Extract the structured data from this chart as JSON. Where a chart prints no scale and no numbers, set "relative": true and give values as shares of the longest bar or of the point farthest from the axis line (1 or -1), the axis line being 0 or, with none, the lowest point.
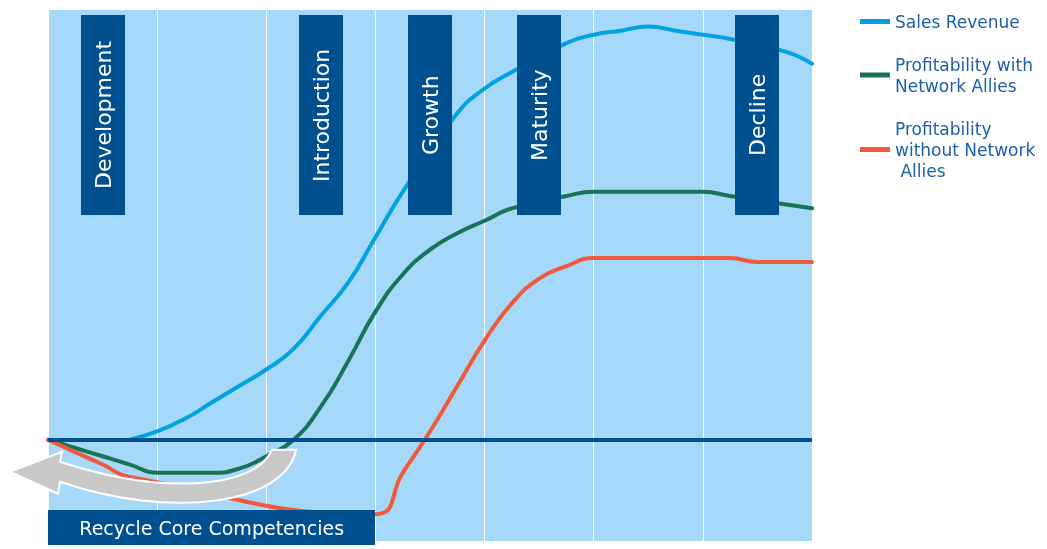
{
  "chart_data": {
    "type": "line",
    "relative": true,
    "categories": [
      null,
      null,
      null,
      null,
      null,
      null,
      null,
      null,
      null,
      null,
      null,
      null,
      null,
      null,
      null,
      null,
      null,
      null,
      null,
      null,
      null,
      null,
      null,
      null,
      null,
      null,
      null,
      null,
      null
    ],
    "series": [
      {
        "name": "Sales Revenue",
        "color": "#00a3e0",
        "values": [
          null,
          null,
          null,
          0,
          0.02,
          0.05,
          0.09,
          0.13,
          0.17,
          0.22,
          0.3,
          0.38,
          0.49,
          0.6,
          null,
          0.79,
          0.85,
          0.89,
          null,
          0.96,
          0.98,
          0.99,
          1,
          0.99,
          0.98,
          0.97,
          null,
          0.94,
          0.91
        ]
      },
      {
        "name": "Profitability with Network Allies",
        "color": "#1a7356",
        "values": [
          0,
          -0.02,
          -0.04,
          -0.06,
          -0.08,
          -0.08,
          -0.08,
          -0.07,
          -0.04,
          0,
          0.08,
          0.19,
          0.31,
          0.4,
          0.46,
          0.5,
          0.53,
          0.56,
          null,
          0.59,
          0.6,
          0.6,
          0.6,
          0.6,
          0.6,
          0.59,
          null,
          0.57,
          0.56
        ]
      },
      {
        "name": "Profitability without Network Allies",
        "color": "#f05a3c",
        "values": [
          0,
          -0.03,
          -0.06,
          -0.09,
          null,
          null,
          null,
          null,
          null,
          null,
          null,
          null,
          -0.18,
          -0.08,
          0.02,
          0.13,
          0.24,
          0.33,
          0.39,
          0.42,
          0.44,
          0.44,
          0.44,
          0.44,
          0.44,
          0.44,
          0.43,
          0.43,
          0.43
        ]
      }
    ],
    "ref_lines": [
      {
        "axis": "y",
        "value": 0,
        "color": "#00508f"
      }
    ],
    "annotations": [
      "Development",
      "Introduction",
      "Growth",
      "Maturity",
      "Decline",
      "Recycle Core Competencies"
    ],
    "grid": "x",
    "legend": "top right",
    "marker": "none",
    "line_style": "solid"
  }
}
